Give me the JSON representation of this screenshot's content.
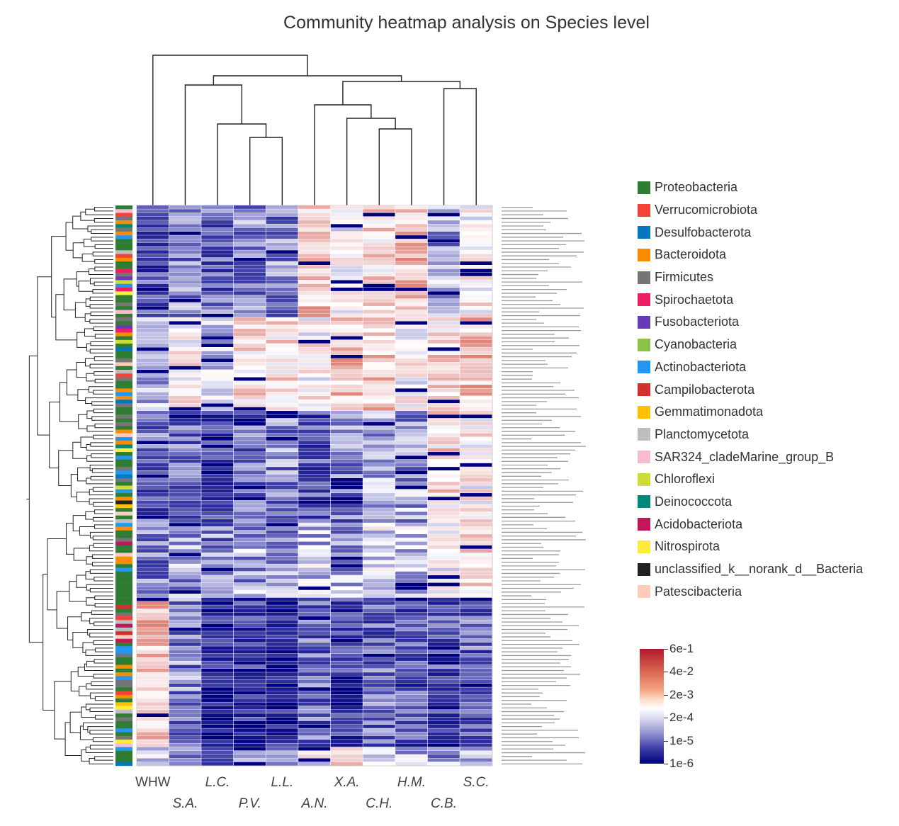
{
  "chart_data": {
    "type": "heatmap",
    "title": "Community heatmap analysis on Species level",
    "columns": [
      "WHW",
      "S.A.",
      "L.C.",
      "P.V.",
      "L.L.",
      "A.N.",
      "X.A.",
      "C.H.",
      "H.M.",
      "C.B.",
      "S.C."
    ],
    "column_label_rows": [
      0,
      1,
      0,
      1,
      0,
      1,
      0,
      1,
      0,
      1,
      0
    ],
    "row_count": 150,
    "row_labels_note": "",
    "colorbar": {
      "ticks": [
        "6e-1",
        "4e-2",
        "2e-3",
        "2e-4",
        "1e-5",
        "1e-6"
      ],
      "colors": [
        "#b2182b",
        "#f4a582",
        "#ffffff",
        "#9090cf",
        "#00007f"
      ]
    },
    "legend": [
      {
        "name": "Proteobacteria",
        "color": "#2e7d32"
      },
      {
        "name": "Verrucomicrobiota",
        "color": "#f44336"
      },
      {
        "name": "Desulfobacterota",
        "color": "#0277bd"
      },
      {
        "name": "Bacteroidota",
        "color": "#fb8c00"
      },
      {
        "name": "Firmicutes",
        "color": "#757575"
      },
      {
        "name": "Spirochaetota",
        "color": "#e91e63"
      },
      {
        "name": "Fusobacteriota",
        "color": "#673ab7"
      },
      {
        "name": "Cyanobacteria",
        "color": "#8bc34a"
      },
      {
        "name": "Actinobacteriota",
        "color": "#2196f3"
      },
      {
        "name": "Campilobacterota",
        "color": "#d32f2f"
      },
      {
        "name": "Gemmatimonadota",
        "color": "#ffc107"
      },
      {
        "name": "Planctomycetota",
        "color": "#bdbdbd"
      },
      {
        "name": "SAR324_cladeMarine_group_B",
        "color": "#f8bbd0"
      },
      {
        "name": "Chloroflexi",
        "color": "#cddc39"
      },
      {
        "name": "Deinococcota",
        "color": "#00897b"
      },
      {
        "name": "Acidobacteriota",
        "color": "#c2185b"
      },
      {
        "name": "Nitrospirota",
        "color": "#ffeb3b"
      },
      {
        "name": "unclassified_k__norank_d__Bacteria",
        "color": "#212121"
      },
      {
        "name": "Patescibacteria",
        "color": "#ffccbc"
      }
    ]
  }
}
